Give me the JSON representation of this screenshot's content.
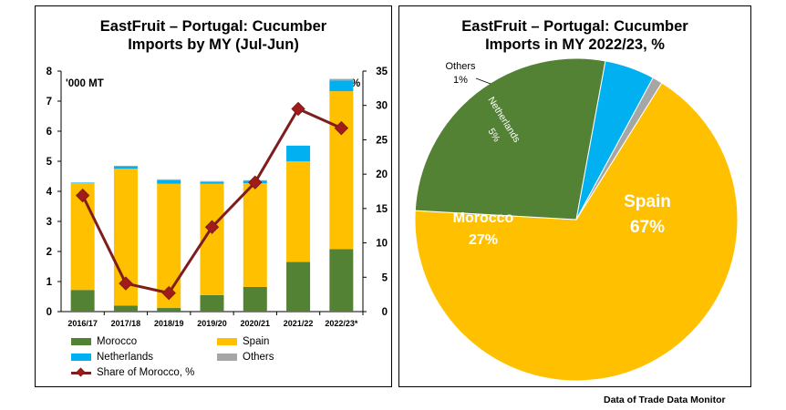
{
  "left_chart": {
    "title_line1": "EastFruit – Portugal: Cucumber",
    "title_line2": "Imports by MY (Jul-Jun)"
  },
  "right_chart": {
    "title_line1": "EastFruit – Portugal: Cucumber",
    "title_line2": "Imports in MY 2022/23, %"
  },
  "source_note": "Data of Trade Data Monitor",
  "colors": {
    "morocco": "#548235",
    "spain": "#ffc000",
    "netherlands": "#00b0f0",
    "others": "#a6a6a6",
    "share_line": "#7f1d1d",
    "share_marker": "#a11b1b"
  },
  "chart_data": [
    {
      "type": "bar",
      "stacked": true,
      "categories": [
        "2016/17",
        "2017/18",
        "2018/19",
        "2019/20",
        "2020/21",
        "2021/22",
        "2022/23*"
      ],
      "series": [
        {
          "name": "Morocco",
          "values": [
            0.72,
            0.2,
            0.12,
            0.55,
            0.82,
            1.65,
            2.08
          ]
        },
        {
          "name": "Spain",
          "values": [
            3.55,
            4.55,
            4.13,
            3.7,
            3.45,
            3.35,
            5.25
          ]
        },
        {
          "name": "Netherlands",
          "values": [
            0.02,
            0.08,
            0.12,
            0.06,
            0.08,
            0.52,
            0.36
          ]
        },
        {
          "name": "Others",
          "values": [
            0.0,
            0.02,
            0.03,
            0.03,
            0.02,
            0.0,
            0.05
          ]
        }
      ],
      "line_series": {
        "name": "Share of Morocco, %",
        "axis": "right",
        "values": [
          16.9,
          4.1,
          2.7,
          12.3,
          18.8,
          29.5,
          26.7
        ]
      },
      "y_left": {
        "label": "'000 MT",
        "lim": [
          0,
          8
        ],
        "ticks": [
          "0",
          "1",
          "2",
          "3",
          "4",
          "5",
          "6",
          "7",
          "8"
        ]
      },
      "y_right": {
        "label": "%",
        "lim": [
          0,
          35
        ],
        "ticks": [
          "0",
          "5",
          "10",
          "15",
          "20",
          "25",
          "30",
          "35"
        ]
      },
      "grid": false,
      "legend_position": "bottom"
    },
    {
      "type": "pie",
      "labels": [
        "Spain",
        "Morocco",
        "Netherlands",
        "Others"
      ],
      "values": [
        67,
        27,
        5,
        1
      ],
      "value_labels": [
        "67%",
        "27%",
        "5%",
        "1%"
      ]
    }
  ]
}
